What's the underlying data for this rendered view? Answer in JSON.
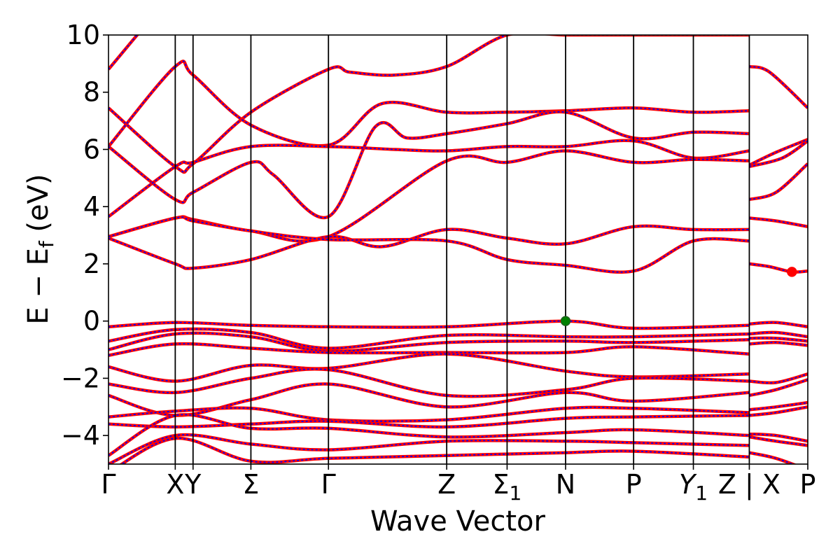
{
  "chart_data": {
    "type": "line",
    "title": "",
    "xlabel": "Wave Vector",
    "ylabel": "E − E_f (eV)",
    "ylabel_parts": {
      "main": "E − E",
      "sub": "f",
      "unit": " (eV)"
    },
    "ylim": [
      -5,
      10
    ],
    "yticks": [
      {
        "value": 10,
        "label": "10"
      },
      {
        "value": 8,
        "label": "8"
      },
      {
        "value": 6,
        "label": "6"
      },
      {
        "value": 4,
        "label": "4"
      },
      {
        "value": 2,
        "label": "2"
      },
      {
        "value": 0,
        "label": "0"
      },
      {
        "value": -2,
        "label": "−2"
      },
      {
        "value": -4,
        "label": "−4"
      }
    ],
    "xrange": [
      0,
      11.0
    ],
    "kpoints": [
      {
        "x": 0.0,
        "label": "Γ",
        "sub": "",
        "divider": false
      },
      {
        "x": 1.05,
        "label": "X",
        "sub": "",
        "divider": true
      },
      {
        "x": 1.33,
        "label": "Y",
        "sub": "",
        "divider": true
      },
      {
        "x": 2.24,
        "label": "Σ",
        "sub": "",
        "divider": true
      },
      {
        "x": 3.46,
        "label": "Γ",
        "sub": "",
        "divider": true
      },
      {
        "x": 5.32,
        "label": "Z",
        "sub": "",
        "divider": true
      },
      {
        "x": 6.27,
        "label": "Σ",
        "sub": "1",
        "divider": true
      },
      {
        "x": 7.19,
        "label": "N",
        "sub": "",
        "divider": true
      },
      {
        "x": 8.26,
        "label": "P",
        "sub": "",
        "divider": true
      },
      {
        "x": 9.2,
        "label": "Y",
        "sub": "1",
        "divider": true,
        "italic": true
      },
      {
        "x": 10.08,
        "label": "Z | X",
        "sub": "",
        "divider": true
      },
      {
        "x": 11.0,
        "label": "P",
        "sub": "",
        "divider": false
      }
    ],
    "markers": [
      {
        "name": "valence band maximum",
        "x": 7.19,
        "y": 0.0,
        "color": "#008000"
      },
      {
        "name": "conduction band minimum",
        "x": 10.75,
        "y": 1.72,
        "color": "#ff0000"
      }
    ],
    "series_style": {
      "band_color": "#ff0000",
      "dash_color": "#0000ff"
    },
    "bands": [
      {
        "x": [
          0,
          1.05,
          1.33,
          2.24,
          3.46,
          5.32,
          6.27,
          7.19,
          8.26,
          9.2,
          10.08
        ],
        "y": [
          8.8,
          11.5,
          11.5,
          11.5,
          11.5,
          11.5,
          11.5,
          11.5,
          11.5,
          11.5,
          11.5
        ]
      },
      {
        "x": [
          0,
          1.05,
          1.33,
          2.24,
          3.46,
          3.8,
          4.5,
          5.32,
          6.27,
          7.19,
          8.26,
          9.2,
          10.08
        ],
        "y": [
          7.45,
          5.4,
          5.5,
          7.3,
          8.8,
          8.7,
          8.6,
          8.9,
          10.0,
          10.0,
          10.0,
          10.0,
          10.0
        ]
      },
      {
        "x": [
          0,
          1.05,
          1.33,
          2.24,
          3.46,
          4.3,
          5.32,
          6.27,
          7.19,
          8.26,
          9.2,
          10.08
        ],
        "y": [
          6.1,
          8.9,
          8.6,
          6.85,
          6.15,
          7.6,
          7.3,
          7.3,
          7.35,
          7.45,
          7.3,
          7.35
        ]
      },
      {
        "x": [
          0,
          1.05,
          1.33,
          2.24,
          2.6,
          3.46,
          4.2,
          4.7,
          5.32,
          6.27,
          7.19,
          8.26,
          9.2,
          10.08
        ],
        "y": [
          6.1,
          4.25,
          4.5,
          5.55,
          5.1,
          3.65,
          6.8,
          6.4,
          6.55,
          6.9,
          7.3,
          6.4,
          6.6,
          6.55
        ]
      },
      {
        "x": [
          0,
          1.05,
          1.33,
          2.24,
          3.46,
          4.5,
          5.32,
          6.27,
          7.19,
          8.26,
          9.2,
          10.08
        ],
        "y": [
          3.65,
          5.4,
          5.55,
          6.1,
          6.1,
          6.0,
          5.95,
          6.1,
          6.1,
          6.3,
          5.7,
          5.95
        ]
      },
      {
        "x": [
          0,
          1.05,
          1.33,
          2.24,
          3.46,
          5.32,
          6.27,
          7.19,
          8.26,
          9.2,
          10.08
        ],
        "y": [
          2.95,
          3.6,
          3.55,
          3.15,
          2.95,
          5.6,
          5.55,
          5.95,
          5.55,
          5.65,
          5.6
        ]
      },
      {
        "x": [
          0,
          1.05,
          1.33,
          2.24,
          3.46,
          4.3,
          5.32,
          6.27,
          7.19,
          8.26,
          9.2,
          10.08
        ],
        "y": [
          2.9,
          2.0,
          1.85,
          2.15,
          2.95,
          2.6,
          3.2,
          2.9,
          2.7,
          3.3,
          3.2,
          3.2
        ]
      },
      {
        "x": [
          0,
          1.05,
          1.33,
          2.24,
          3.46,
          5.32,
          6.27,
          7.19,
          8.26,
          9.2,
          10.08
        ],
        "y": [
          2.95,
          3.6,
          3.5,
          3.15,
          2.85,
          2.8,
          2.15,
          1.95,
          1.75,
          2.8,
          2.8
        ]
      },
      {
        "x": [
          0,
          1.05,
          2.24,
          3.46,
          5.32,
          7.19,
          8.26,
          10.08
        ],
        "y": [
          -0.2,
          -0.05,
          -0.15,
          -0.2,
          -0.2,
          0.0,
          -0.25,
          -0.15
        ]
      },
      {
        "x": [
          0,
          1.05,
          2.24,
          3.46,
          5.32,
          7.19,
          8.26,
          10.08
        ],
        "y": [
          -0.7,
          -0.3,
          -0.4,
          -0.95,
          -0.5,
          -0.55,
          -0.55,
          -0.45
        ]
      },
      {
        "x": [
          0,
          1.05,
          2.24,
          3.46,
          5.32,
          7.19,
          8.26,
          10.08
        ],
        "y": [
          -1.0,
          -0.45,
          -0.55,
          -1.05,
          -0.75,
          -0.7,
          -0.75,
          -0.65
        ]
      },
      {
        "x": [
          0,
          1.05,
          2.24,
          3.46,
          5.32,
          7.19,
          8.26,
          10.08
        ],
        "y": [
          -1.2,
          -0.8,
          -0.95,
          -1.1,
          -1.1,
          -1.1,
          -0.9,
          -1.15
        ]
      },
      {
        "x": [
          0,
          1.05,
          2.24,
          3.46,
          5.32,
          7.19,
          8.26,
          10.08
        ],
        "y": [
          -1.6,
          -2.1,
          -1.55,
          -1.65,
          -1.15,
          -1.75,
          -1.95,
          -1.85
        ]
      },
      {
        "x": [
          0,
          1.05,
          2.24,
          3.46,
          5.32,
          7.19,
          8.26,
          10.08
        ],
        "y": [
          -2.2,
          -2.5,
          -2.0,
          -1.7,
          -2.6,
          -2.4,
          -2.0,
          -2.1
        ]
      },
      {
        "x": [
          0,
          1.05,
          2.24,
          3.46,
          5.32,
          7.19,
          8.26,
          10.08
        ],
        "y": [
          -2.6,
          -3.3,
          -2.75,
          -2.2,
          -3.0,
          -2.5,
          -2.8,
          -2.5
        ]
      },
      {
        "x": [
          0,
          1.05,
          2.24,
          3.46,
          5.32,
          7.19,
          8.26,
          10.08
        ],
        "y": [
          -3.35,
          -3.15,
          -3.05,
          -3.45,
          -3.45,
          -3.05,
          -3.05,
          -3.2
        ]
      },
      {
        "x": [
          0,
          1.05,
          2.24,
          3.46,
          5.32,
          7.19,
          8.26,
          10.08
        ],
        "y": [
          -3.6,
          -3.7,
          -3.6,
          -3.5,
          -3.7,
          -3.4,
          -3.35,
          -3.3
        ]
      },
      {
        "x": [
          0,
          1.05,
          2.24,
          3.46,
          5.32,
          7.19,
          8.26,
          10.08
        ],
        "y": [
          -4.7,
          -3.3,
          -3.75,
          -3.75,
          -4.05,
          -3.9,
          -3.8,
          -4.0
        ]
      },
      {
        "x": [
          0,
          1.05,
          2.24,
          3.46,
          5.32,
          7.19,
          8.26,
          10.08
        ],
        "y": [
          -5.0,
          -4.0,
          -4.3,
          -4.5,
          -4.2,
          -4.2,
          -4.25,
          -4.35
        ]
      },
      {
        "x": [
          0,
          1.05,
          2.24,
          3.46,
          5.32,
          7.19,
          8.26,
          10.08
        ],
        "y": [
          -5.3,
          -4.1,
          -4.9,
          -4.8,
          -4.7,
          -4.6,
          -4.55,
          -4.75
        ]
      },
      {
        "x": [
          10.08,
          10.4,
          11.0
        ],
        "y": [
          8.9,
          8.7,
          7.45
        ]
      },
      {
        "x": [
          10.08,
          10.5,
          11.0
        ],
        "y": [
          5.45,
          5.9,
          6.35
        ]
      },
      {
        "x": [
          10.08,
          10.6,
          11.0
        ],
        "y": [
          5.4,
          5.7,
          6.3
        ]
      },
      {
        "x": [
          10.08,
          10.5,
          11.0
        ],
        "y": [
          4.25,
          4.5,
          5.5
        ]
      },
      {
        "x": [
          10.08,
          10.5,
          11.0
        ],
        "y": [
          3.6,
          3.5,
          3.3
        ]
      },
      {
        "x": [
          10.08,
          10.4,
          10.75,
          11.0
        ],
        "y": [
          2.0,
          1.9,
          1.72,
          1.75
        ]
      },
      {
        "x": [
          10.08,
          10.5,
          11.0
        ],
        "y": [
          -0.1,
          -0.05,
          -0.2
        ]
      },
      {
        "x": [
          10.08,
          10.5,
          11.0
        ],
        "y": [
          -0.45,
          -0.4,
          -0.55
        ]
      },
      {
        "x": [
          10.08,
          10.5,
          11.0
        ],
        "y": [
          -0.6,
          -0.6,
          -0.7
        ]
      },
      {
        "x": [
          10.08,
          10.5,
          11.0
        ],
        "y": [
          -0.8,
          -0.75,
          -0.85
        ]
      },
      {
        "x": [
          10.08,
          10.5,
          11.0
        ],
        "y": [
          -2.1,
          -2.15,
          -1.85
        ]
      },
      {
        "x": [
          10.08,
          10.5,
          11.0
        ],
        "y": [
          -2.6,
          -2.4,
          -2.05
        ]
      },
      {
        "x": [
          10.08,
          10.5,
          11.0
        ],
        "y": [
          -3.1,
          -3.0,
          -2.85
        ]
      },
      {
        "x": [
          10.08,
          10.5,
          11.0
        ],
        "y": [
          -3.3,
          -3.2,
          -3.0
        ]
      },
      {
        "x": [
          10.08,
          10.5,
          11.0
        ],
        "y": [
          -3.95,
          -4.0,
          -4.2
        ]
      },
      {
        "x": [
          10.08,
          10.5,
          11.0
        ],
        "y": [
          -4.05,
          -4.2,
          -4.35
        ]
      },
      {
        "x": [
          10.08,
          10.5,
          11.0
        ],
        "y": [
          -4.6,
          -4.8,
          -5.2
        ]
      }
    ]
  }
}
